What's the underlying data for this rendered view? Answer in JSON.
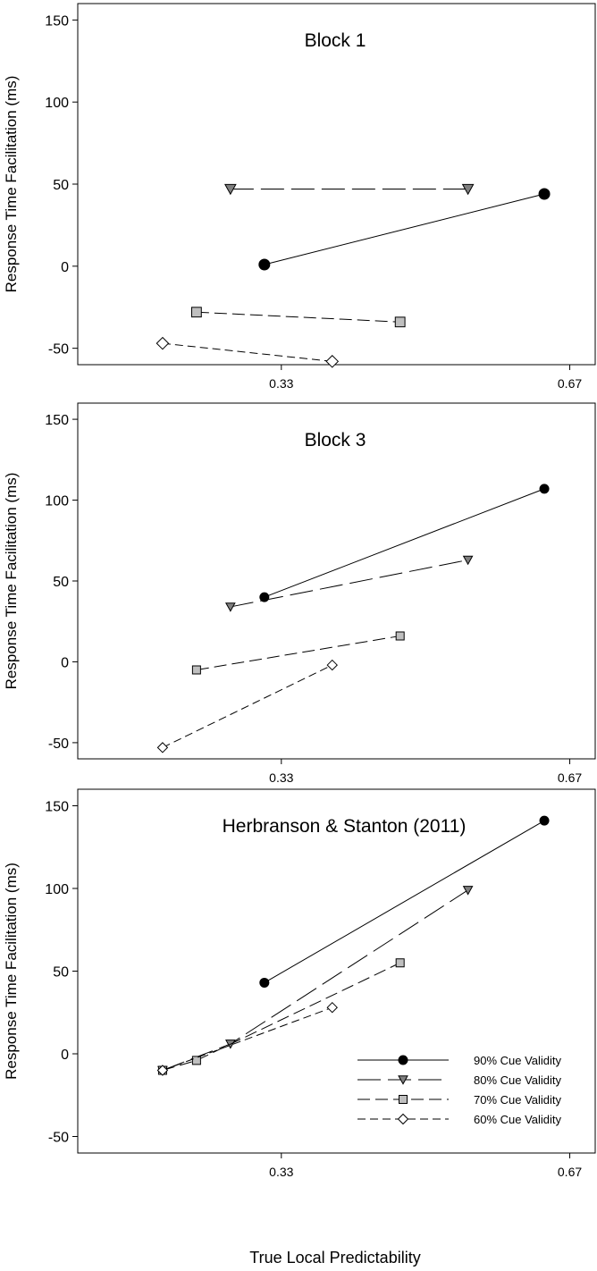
{
  "figure": {
    "ylabel": "Response Time Facilitation (ms)",
    "xlabel": "True Local Predictability"
  },
  "chart_data": [
    {
      "type": "line",
      "title": "Block 1",
      "ylabel": "Response Time Facilitation (ms)",
      "xlabel": "",
      "xticks": [
        "0.33",
        "0.67"
      ],
      "yticks": [
        "-50",
        "0",
        "50",
        "100",
        "150"
      ],
      "xlim": [
        0.09,
        0.7
      ],
      "ylim": [
        -60,
        160
      ],
      "series": [
        {
          "name": "90% Cue Validity",
          "x": [
            0.31,
            0.64
          ],
          "y": [
            1,
            44
          ]
        },
        {
          "name": "80% Cue Validity",
          "x": [
            0.27,
            0.55
          ],
          "y": [
            47,
            47
          ]
        },
        {
          "name": "70% Cue Validity",
          "x": [
            0.23,
            0.47
          ],
          "y": [
            -28,
            -34
          ]
        },
        {
          "name": "60% Cue Validity",
          "x": [
            0.19,
            0.39
          ],
          "y": [
            -47,
            -58
          ]
        }
      ]
    },
    {
      "type": "line",
      "title": "Block 3",
      "ylabel": "Response Time Facilitation (ms)",
      "xlabel": "",
      "xticks": [
        "0.33",
        "0.67"
      ],
      "yticks": [
        "-50",
        "0",
        "50",
        "100",
        "150"
      ],
      "xlim": [
        0.09,
        0.7
      ],
      "ylim": [
        -60,
        160
      ],
      "series": [
        {
          "name": "90% Cue Validity",
          "x": [
            0.31,
            0.64
          ],
          "y": [
            40,
            107
          ]
        },
        {
          "name": "80% Cue Validity",
          "x": [
            0.27,
            0.55
          ],
          "y": [
            34,
            63
          ]
        },
        {
          "name": "70% Cue Validity",
          "x": [
            0.23,
            0.47
          ],
          "y": [
            -5,
            16
          ]
        },
        {
          "name": "60% Cue Validity",
          "x": [
            0.19,
            0.39
          ],
          "y": [
            -53,
            -2
          ]
        }
      ]
    },
    {
      "type": "line",
      "title": "Herbranson & Stanton (2011)",
      "ylabel": "Response Time Facilitation (ms)",
      "xlabel": "True Local Predictability",
      "xticks": [
        "0.33",
        "0.67"
      ],
      "yticks": [
        "-50",
        "0",
        "50",
        "100",
        "150"
      ],
      "xlim": [
        0.09,
        0.7
      ],
      "ylim": [
        -60,
        160
      ],
      "legend_position": "bottom-right",
      "series": [
        {
          "name": "90% Cue Validity",
          "x": [
            0.31,
            0.64
          ],
          "y": [
            43,
            141
          ]
        },
        {
          "name": "80% Cue Validity",
          "x": [
            0.19,
            0.27,
            0.55
          ],
          "y": [
            -10,
            6,
            99
          ]
        },
        {
          "name": "70% Cue Validity",
          "x": [
            0.19,
            0.23,
            0.47
          ],
          "y": [
            -10,
            -4,
            55
          ]
        },
        {
          "name": "60% Cue Validity",
          "x": [
            0.19,
            0.39
          ],
          "y": [
            -10,
            28
          ]
        }
      ]
    }
  ]
}
